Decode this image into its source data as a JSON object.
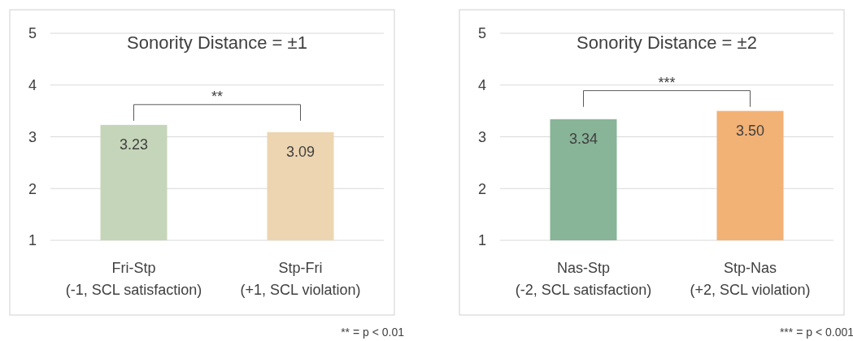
{
  "chart_data": [
    {
      "type": "bar",
      "title": "Sonority Distance = ±1",
      "categories": [
        "Fri-Stp\n(-1, SCL satisfaction)",
        "Stp-Fri\n(+1, SCL violation)"
      ],
      "values": [
        3.23,
        3.09
      ],
      "value_labels": [
        "3.23",
        "3.09"
      ],
      "colors": [
        "#c5d5b9",
        "#ecd5b0"
      ],
      "ylim": [
        1,
        5
      ],
      "yticks": [
        1,
        2,
        3,
        4,
        5
      ],
      "grid": "y",
      "annotations": [
        "**",
        "** = p < 0.01"
      ]
    },
    {
      "type": "bar",
      "title": "Sonority Distance = ±2",
      "categories": [
        "Nas-Stp\n(-2, SCL satisfaction)",
        "Stp-Nas\n(+2, SCL violation)"
      ],
      "values": [
        3.34,
        3.5
      ],
      "value_labels": [
        "3.34",
        "3.50"
      ],
      "colors": [
        "#88b498",
        "#f2b175"
      ],
      "ylim": [
        1,
        5
      ],
      "yticks": [
        1,
        2,
        3,
        4,
        5
      ],
      "grid": "y",
      "annotations": [
        "***",
        "*** = p < 0.001"
      ]
    }
  ]
}
